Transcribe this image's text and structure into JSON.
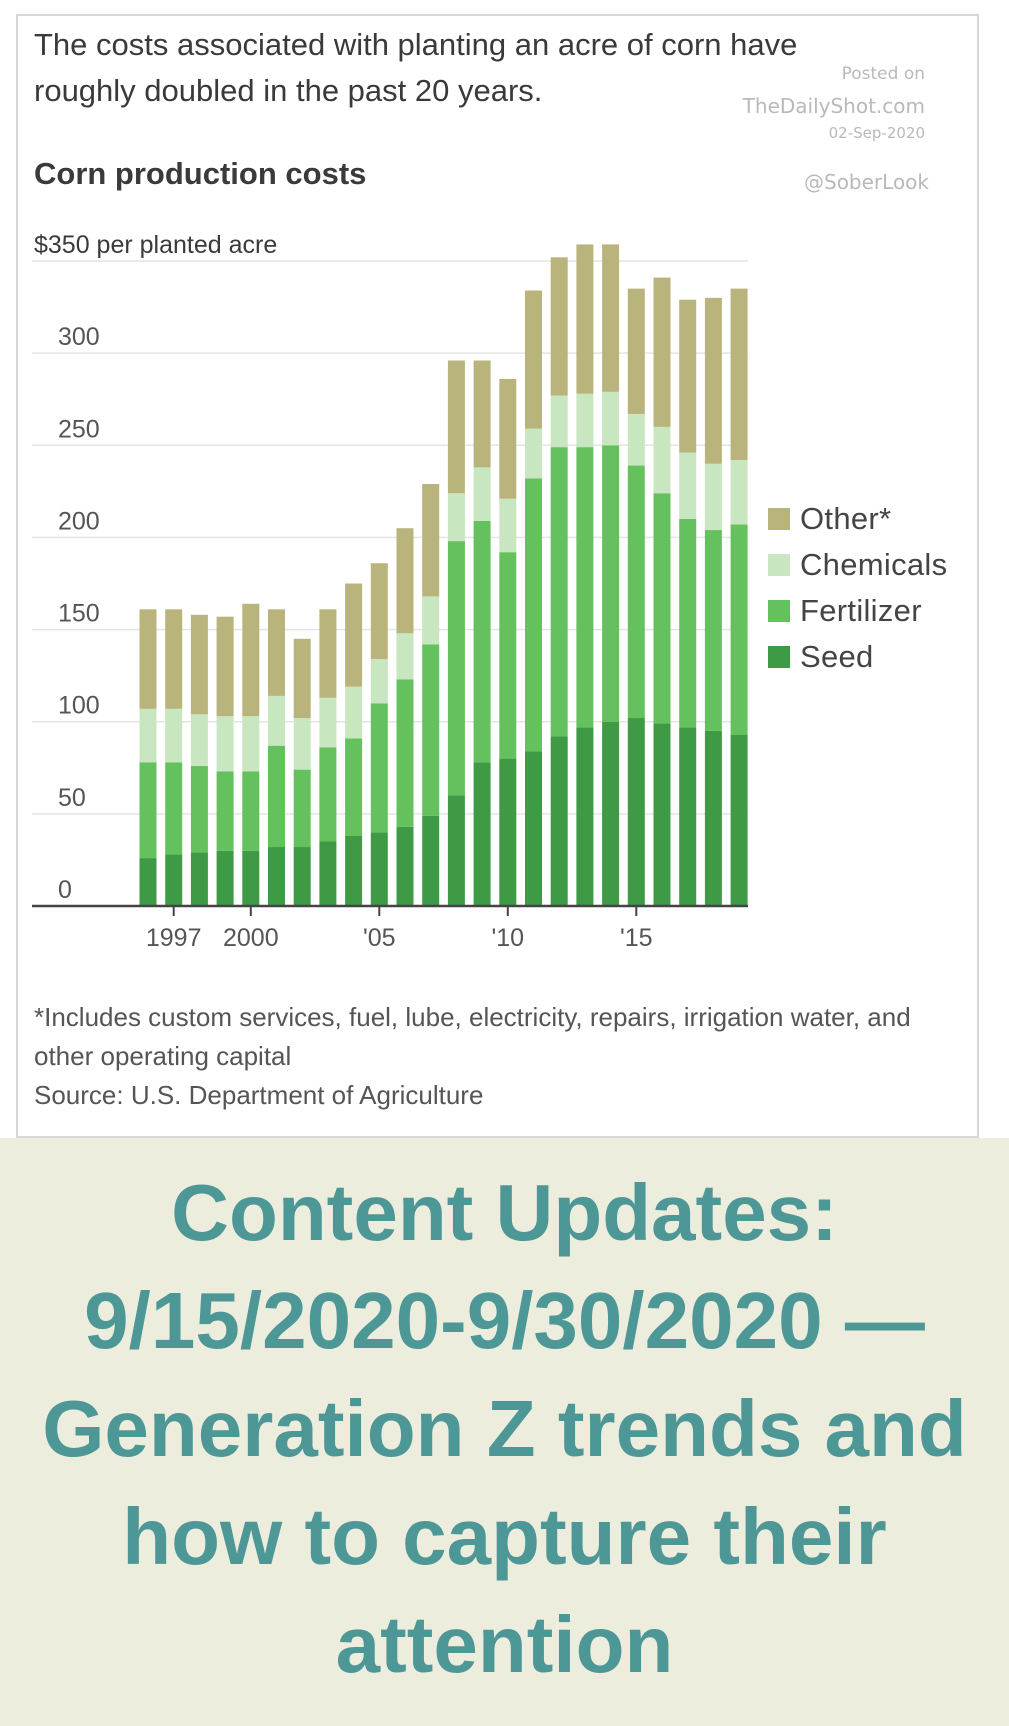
{
  "headline": "The costs associated with planting an acre of corn have roughly doubled in the past 20 years.",
  "watermark": {
    "posted_on": "Posted on",
    "site": "TheDailyShot.com",
    "date": "02-Sep-2020",
    "handle": "@SoberLook"
  },
  "footnote": {
    "note": "*Includes custom services, fuel, lube, electricity, repairs, irrigation water, and other operating capital",
    "source": "Source: U.S. Department of Agriculture"
  },
  "banner": {
    "text": "Content Updates: 9/15/2020-9/30/2020 — Generation Z trends and how to capture their attention"
  },
  "colors": {
    "seed": "#3f9a45",
    "fertilizer": "#65c15d",
    "chemicals": "#c8e6c0",
    "other": "#b9b37c",
    "banner_bg": "#ededde",
    "banner_text": "#4e9797"
  },
  "chart_data": {
    "type": "bar",
    "stacked": true,
    "title": "Corn production costs",
    "ylabel": "$350 per planted acre",
    "ylim": [
      0,
      350
    ],
    "y_ticks": [
      "0",
      "50",
      "100",
      "150",
      "200",
      "250",
      "300"
    ],
    "x_tick_labels": [
      {
        "year": 1997,
        "label": "1997"
      },
      {
        "year": 2000,
        "label": "2000"
      },
      {
        "year": 2005,
        "label": "'05"
      },
      {
        "year": 2010,
        "label": "'10"
      },
      {
        "year": 2015,
        "label": "'15"
      }
    ],
    "grid": true,
    "legend_position": "right",
    "categories": [
      1996,
      1997,
      1998,
      1999,
      2000,
      2001,
      2002,
      2003,
      2004,
      2005,
      2006,
      2007,
      2008,
      2009,
      2010,
      2011,
      2012,
      2013,
      2014,
      2015,
      2016,
      2017,
      2018,
      2019
    ],
    "series": [
      {
        "name": "Seed",
        "color": "#3f9a45",
        "values": [
          26,
          28,
          29,
          30,
          30,
          32,
          32,
          35,
          38,
          40,
          43,
          49,
          60,
          78,
          80,
          84,
          92,
          97,
          100,
          102,
          99,
          97,
          95,
          93
        ]
      },
      {
        "name": "Fertilizer",
        "color": "#65c15d",
        "values": [
          52,
          50,
          47,
          43,
          43,
          55,
          42,
          51,
          53,
          70,
          80,
          93,
          138,
          131,
          112,
          148,
          157,
          152,
          150,
          137,
          125,
          113,
          109,
          114
        ]
      },
      {
        "name": "Chemicals",
        "color": "#c8e6c0",
        "values": [
          29,
          29,
          28,
          30,
          30,
          27,
          28,
          27,
          28,
          24,
          25,
          26,
          26,
          29,
          29,
          27,
          28,
          29,
          29,
          28,
          36,
          36,
          36,
          35
        ]
      },
      {
        "name": "Other*",
        "color": "#b9b37c",
        "values": [
          54,
          54,
          54,
          54,
          61,
          47,
          43,
          48,
          56,
          52,
          57,
          61,
          72,
          58,
          65,
          75,
          75,
          81,
          80,
          68,
          81,
          83,
          90,
          93
        ]
      }
    ]
  }
}
